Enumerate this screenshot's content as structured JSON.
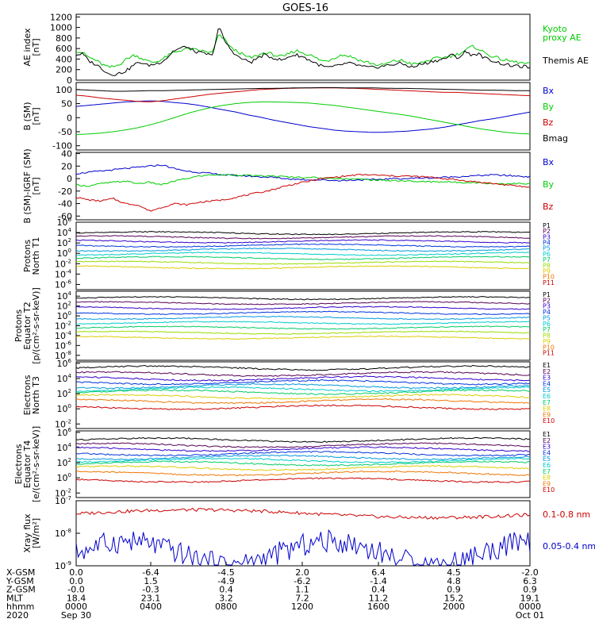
{
  "title": "GOES-16",
  "chart_data": [
    {
      "type": "line",
      "ylabel": [
        "AE index",
        "[nT]"
      ],
      "yticks": [
        "1200",
        "1000",
        "800",
        "600",
        "400",
        "200",
        "0"
      ],
      "ylim": [
        0,
        1250
      ],
      "series": [
        {
          "name": "Kyoto proxy AE",
          "label_lines": [
            "Kyoto",
            "proxy AE"
          ],
          "color": "#00cc00",
          "values": [
            560,
            520,
            430,
            380,
            300,
            240,
            260,
            330,
            420,
            480,
            420,
            360,
            340,
            380,
            450,
            520,
            560,
            600,
            580,
            560,
            540,
            520,
            860,
            760,
            600,
            540,
            460,
            420,
            470,
            520,
            500,
            460,
            440,
            520,
            560,
            520,
            480,
            420,
            360,
            380,
            440,
            480,
            460,
            420,
            360,
            340,
            300,
            280,
            320,
            360,
            380,
            340,
            300,
            320,
            360,
            400,
            420,
            440,
            460,
            500,
            560,
            640,
            600,
            520,
            460,
            420,
            380,
            360,
            340,
            320,
            300
          ]
        },
        {
          "name": "Themis AE",
          "label_lines": [
            "Themis AE"
          ],
          "color": "#000000",
          "values": [
            480,
            500,
            360,
            300,
            220,
            120,
            110,
            140,
            200,
            300,
            340,
            280,
            300,
            340,
            420,
            560,
            600,
            640,
            560,
            520,
            500,
            460,
            1020,
            720,
            560,
            440,
            380,
            340,
            420,
            480,
            440,
            400,
            380,
            460,
            480,
            440,
            380,
            320,
            260,
            240,
            260,
            300,
            320,
            300,
            260,
            240,
            240,
            260,
            280,
            300,
            320,
            280,
            240,
            300,
            320,
            360,
            380,
            420,
            480,
            420,
            540,
            480,
            500,
            420,
            380,
            340,
            300,
            280,
            260,
            260,
            240
          ]
        }
      ]
    },
    {
      "type": "line",
      "ylabel": [
        "B (SM)",
        "[nT]"
      ],
      "yticks": [
        "100",
        "50",
        "0",
        "-50",
        "-100"
      ],
      "ylim": [
        -115,
        125
      ],
      "series": [
        {
          "name": "Bx",
          "color": "#0000cc",
          "values": [
            40,
            44,
            48,
            52,
            56,
            58,
            60,
            58,
            54,
            50,
            44,
            36,
            28,
            20,
            10,
            2,
            -8,
            -16,
            -24,
            -32,
            -38,
            -44,
            -48,
            -50,
            -52,
            -52,
            -50,
            -48,
            -44,
            -40,
            -34,
            -26,
            -18,
            -10,
            -4,
            4,
            12,
            20
          ]
        },
        {
          "name": "By",
          "color": "#00cc00",
          "values": [
            -60,
            -58,
            -55,
            -50,
            -44,
            -36,
            -26,
            -14,
            0,
            14,
            26,
            36,
            44,
            50,
            54,
            56,
            56,
            55,
            54,
            52,
            48,
            44,
            38,
            32,
            26,
            20,
            14,
            8,
            0,
            -8,
            -16,
            -24,
            -32,
            -40,
            -46,
            -52,
            -56,
            -58
          ]
        },
        {
          "name": "Bz",
          "color": "#cc0000",
          "values": [
            80,
            76,
            70,
            66,
            62,
            58,
            56,
            60,
            66,
            72,
            78,
            84,
            88,
            92,
            96,
            100,
            102,
            104,
            105,
            106,
            106,
            106,
            105,
            104,
            102,
            100,
            98,
            96,
            94,
            92,
            90,
            90,
            88,
            86,
            84,
            82,
            80,
            78
          ]
        },
        {
          "name": "Bmag",
          "color": "#000000",
          "values": [
            100,
            98,
            96,
            94,
            94,
            95,
            96,
            96,
            97,
            98,
            99,
            100,
            101,
            102,
            103,
            104,
            104,
            105,
            106,
            106,
            107,
            107,
            106,
            106,
            106,
            105,
            104,
            104,
            103,
            102,
            101,
            100,
            99,
            98,
            98,
            97,
            96,
            96
          ]
        }
      ]
    },
    {
      "type": "line",
      "ylabel": [
        "B (SM)-IGRF (SM)",
        "[nT]"
      ],
      "yticks": [
        "40",
        "20",
        "0",
        "-20",
        "-40",
        "-60"
      ],
      "ylim": [
        -66,
        42
      ],
      "series": [
        {
          "name": "Bx",
          "color": "#0000cc",
          "values": [
            8,
            10,
            12,
            14,
            16,
            18,
            20,
            22,
            16,
            12,
            10,
            8,
            6,
            5,
            4,
            3,
            2,
            0,
            -1,
            -2,
            -2,
            -3,
            -3,
            -2,
            -2,
            -1,
            0,
            0,
            1,
            1,
            2,
            3,
            4,
            5,
            6,
            5,
            4,
            3
          ]
        },
        {
          "name": "By",
          "color": "#00cc00",
          "values": [
            -10,
            -12,
            -8,
            -6,
            -4,
            -8,
            -6,
            -10,
            -4,
            0,
            4,
            6,
            6,
            6,
            5,
            4,
            4,
            3,
            2,
            2,
            1,
            0,
            0,
            -1,
            -2,
            -3,
            -3,
            -4,
            -5,
            -5,
            -5,
            -6,
            -6,
            -7,
            -8,
            -8,
            -8,
            -9
          ]
        },
        {
          "name": "Bz",
          "color": "#cc0000",
          "values": [
            -30,
            -34,
            -36,
            -32,
            -40,
            -42,
            -52,
            -46,
            -40,
            -42,
            -38,
            -36,
            -34,
            -30,
            -26,
            -22,
            -18,
            -12,
            -8,
            -4,
            0,
            2,
            4,
            6,
            6,
            5,
            4,
            4,
            3,
            2,
            0,
            -2,
            -4,
            -6,
            -8,
            -10,
            -12,
            -14
          ]
        }
      ]
    },
    {
      "type": "line",
      "ylabel": [
        "Protons",
        "North T1"
      ],
      "log_scale": true,
      "yticks": [
        {
          "b": "10",
          "e": "6"
        },
        {
          "b": "10",
          "e": "4"
        },
        {
          "b": "10",
          "e": "2"
        },
        {
          "b": "10",
          "e": "0"
        },
        {
          "b": "10",
          "e": "-2"
        },
        {
          "b": "10",
          "e": "-4"
        },
        {
          "b": "10",
          "e": "-6"
        }
      ],
      "ylim_exp": [
        -7,
        6
      ],
      "series": [
        {
          "name": "P1",
          "color": "#000000",
          "level": 3.9
        },
        {
          "name": "P2",
          "color": "#550055",
          "level": 3.1
        },
        {
          "name": "P3",
          "color": "#3300cc",
          "level": 2.3
        },
        {
          "name": "P4",
          "color": "#0033dd",
          "level": 1.5
        },
        {
          "name": "P5",
          "color": "#0099dd",
          "level": 0.7
        },
        {
          "name": "P6",
          "color": "#00cccc",
          "level": -0.1
        },
        {
          "name": "P7",
          "color": "#00cc66",
          "level": -0.9
        },
        {
          "name": "P8",
          "color": "#99dd00",
          "level": -1.8
        },
        {
          "name": "P9",
          "color": "#ddcc00",
          "level": -2.7
        },
        {
          "name": "P10",
          "color": "#ee7700",
          "level": -99
        },
        {
          "name": "P11",
          "color": "#cc0000",
          "level": -99
        }
      ]
    },
    {
      "type": "line",
      "ylabel": [
        "Protons",
        "Equator T2",
        "[p/(cm²-s-sr-keV)]"
      ],
      "log_scale": true,
      "yticks": [
        {
          "b": "10",
          "e": "4"
        },
        {
          "b": "10",
          "e": "2"
        },
        {
          "b": "10",
          "e": "0"
        },
        {
          "b": "10",
          "e": "-2"
        },
        {
          "b": "10",
          "e": "-4"
        },
        {
          "b": "10",
          "e": "-6"
        },
        {
          "b": "10",
          "e": "-8"
        }
      ],
      "ylim_exp": [
        -9,
        5
      ],
      "series": [
        {
          "name": "P1",
          "color": "#000000",
          "level": 3.6
        },
        {
          "name": "P2",
          "color": "#550055",
          "level": 2.6
        },
        {
          "name": "P3",
          "color": "#3300cc",
          "level": 1.6
        },
        {
          "name": "P4",
          "color": "#0033dd",
          "level": 0.6
        },
        {
          "name": "P5",
          "color": "#0099dd",
          "level": -0.4
        },
        {
          "name": "P6",
          "color": "#00cccc",
          "level": -1.4
        },
        {
          "name": "P7",
          "color": "#00cc66",
          "level": -2.4
        },
        {
          "name": "P8",
          "color": "#99dd00",
          "level": -3.4
        },
        {
          "name": "P9",
          "color": "#ddcc00",
          "level": -4.4
        },
        {
          "name": "P10",
          "color": "#ee7700",
          "level": -99
        },
        {
          "name": "P11",
          "color": "#cc0000",
          "level": -99
        }
      ]
    },
    {
      "type": "line",
      "ylabel": [
        "Electrons",
        "North T3"
      ],
      "log_scale": true,
      "yticks": [
        {
          "b": "10",
          "e": "6"
        },
        {
          "b": "10",
          "e": "4"
        },
        {
          "b": "10",
          "e": "2"
        },
        {
          "b": "10",
          "e": "0"
        },
        {
          "b": "10",
          "e": "-2"
        }
      ],
      "ylim_exp": [
        -2.6,
        6.2
      ],
      "series": [
        {
          "name": "E1",
          "color": "#000000",
          "level": 5.4
        },
        {
          "name": "E2",
          "color": "#550055",
          "level": 4.6
        },
        {
          "name": "E3",
          "color": "#3300cc",
          "level": 4.0
        },
        {
          "name": "E4",
          "color": "#0033dd",
          "level": 3.5
        },
        {
          "name": "E5",
          "color": "#0099dd",
          "level": 3.0
        },
        {
          "name": "E6",
          "color": "#00cccc",
          "level": 2.6
        },
        {
          "name": "E7",
          "color": "#00cc66",
          "level": 2.2
        },
        {
          "name": "E8",
          "color": "#ddcc00",
          "level": 1.6
        },
        {
          "name": "E9",
          "color": "#ee7700",
          "level": 1.0
        },
        {
          "name": "E10",
          "color": "#cc0000",
          "level": 0.2
        }
      ]
    },
    {
      "type": "line",
      "ylabel": [
        "Electrons",
        "Equator T4",
        "[e/(cm²-s-sr-keV)]"
      ],
      "log_scale": true,
      "yticks": [
        {
          "b": "10",
          "e": "6"
        },
        {
          "b": "10",
          "e": "4"
        },
        {
          "b": "10",
          "e": "2"
        },
        {
          "b": "10",
          "e": "0"
        },
        {
          "b": "10",
          "e": "-2"
        }
      ],
      "ylim_exp": [
        -2.6,
        6.2
      ],
      "series": [
        {
          "name": "E1",
          "color": "#000000",
          "level": 5.0
        },
        {
          "name": "E2",
          "color": "#550055",
          "level": 4.3
        },
        {
          "name": "E3",
          "color": "#3300cc",
          "level": 3.8
        },
        {
          "name": "E4",
          "color": "#0033dd",
          "level": 3.2
        },
        {
          "name": "E5",
          "color": "#0099dd",
          "level": 2.7
        },
        {
          "name": "E6",
          "color": "#00cccc",
          "level": 2.3
        },
        {
          "name": "E7",
          "color": "#00cc66",
          "level": 1.9
        },
        {
          "name": "E8",
          "color": "#ddcc00",
          "level": 1.3
        },
        {
          "name": "E9",
          "color": "#ee7700",
          "level": 0.6
        },
        {
          "name": "E10",
          "color": "#cc0000",
          "level": -0.3
        }
      ]
    },
    {
      "type": "line",
      "ylabel": [
        "Xray flux",
        "[W/m²]"
      ],
      "log_scale": true,
      "yticks": [
        {
          "b": "10",
          "e": "-7"
        },
        {
          "b": "10",
          "e": "-8"
        },
        {
          "b": "10",
          "e": "-9"
        }
      ],
      "ylim_exp": [
        -9,
        -7
      ],
      "series": [
        {
          "name": "0.1-0.8 nm",
          "color": "#cc0000",
          "level": -7.4
        },
        {
          "name": "0.05-0.4 nm",
          "color": "#0000cc",
          "level": -8.6
        }
      ]
    }
  ],
  "footer": {
    "rows": [
      {
        "label": "X-GSM",
        "values": [
          "0.0",
          "-6.4",
          "-4.5",
          "2.0",
          "6.4",
          "4.5",
          "-2.0"
        ]
      },
      {
        "label": "Y-GSM",
        "values": [
          "0.0",
          "1.5",
          "-4.9",
          "-6.2",
          "-1.4",
          "4.8",
          "6.3"
        ]
      },
      {
        "label": "Z-GSM",
        "values": [
          "-0.0",
          "-0.3",
          "0.4",
          "1.1",
          "0.4",
          "0.9",
          "0.9"
        ]
      },
      {
        "label": "MLT",
        "values": [
          "18.4",
          "23.1",
          "3.2",
          "7.2",
          "11.2",
          "15.2",
          "19.1"
        ]
      },
      {
        "label": "hhmm",
        "values": [
          "0000",
          "0400",
          "0800",
          "1200",
          "1600",
          "2000",
          "0000"
        ]
      },
      {
        "label": "2020",
        "values": [
          "Sep 30",
          "",
          "",
          "",
          "",
          "",
          "Oct 01"
        ]
      }
    ]
  }
}
